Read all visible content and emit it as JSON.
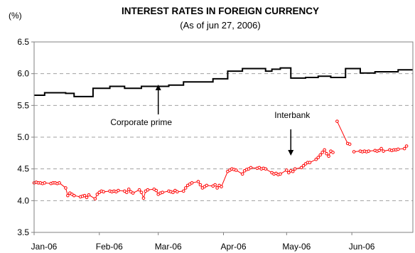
{
  "chart_data": {
    "type": "line",
    "title": "INTEREST RATES IN FOREIGN CURRENCY",
    "subtitle": "(As of jun 27, 2006)",
    "ylabel": "(%)",
    "ylim": [
      3.5,
      6.5
    ],
    "yticks": [
      "3.5",
      "4.0",
      "4.5",
      "5.0",
      "5.5",
      "6.0",
      "6.5"
    ],
    "xlim": [
      "2006-01-01",
      "2006-06-30"
    ],
    "xticks": [
      {
        "date": "2006-01-01",
        "label": "Jan-06"
      },
      {
        "date": "2006-02-01",
        "label": "Feb-06"
      },
      {
        "date": "2006-03-01",
        "label": "Mar-06"
      },
      {
        "date": "2006-04-01",
        "label": "Apr-06"
      },
      {
        "date": "2006-05-01",
        "label": "May-06"
      },
      {
        "date": "2006-06-01",
        "label": "Jun-06"
      }
    ],
    "grid": "horizontal dashed",
    "legend": "none",
    "colors": {
      "corporate_prime": "#000000",
      "interbank": "#ff0000"
    },
    "series": [
      {
        "name": "Corporate prime",
        "step": true,
        "points": [
          [
            "2006-01-01",
            5.66
          ],
          [
            "2006-01-06",
            5.7
          ],
          [
            "2006-01-16",
            5.69
          ],
          [
            "2006-01-20",
            5.64
          ],
          [
            "2006-01-29",
            5.77
          ],
          [
            "2006-02-06",
            5.8
          ],
          [
            "2006-02-13",
            5.77
          ],
          [
            "2006-02-21",
            5.8
          ],
          [
            "2006-03-06",
            5.82
          ],
          [
            "2006-03-13",
            5.87
          ],
          [
            "2006-03-27",
            5.92
          ],
          [
            "2006-04-03",
            6.04
          ],
          [
            "2006-04-10",
            6.08
          ],
          [
            "2006-04-21",
            6.04
          ],
          [
            "2006-04-24",
            6.07
          ],
          [
            "2006-04-28",
            6.09
          ],
          [
            "2006-05-03",
            5.93
          ],
          [
            "2006-05-10",
            5.94
          ],
          [
            "2006-05-16",
            5.96
          ],
          [
            "2006-05-22",
            5.94
          ],
          [
            "2006-05-29",
            6.08
          ],
          [
            "2006-06-05",
            6.01
          ],
          [
            "2006-06-12",
            6.03
          ],
          [
            "2006-06-23",
            6.06
          ],
          [
            "2006-06-30",
            6.06
          ]
        ]
      },
      {
        "name": "Interbank",
        "points": [
          [
            "2006-01-01",
            4.28
          ],
          [
            "2006-01-02",
            4.29
          ],
          [
            "2006-01-03",
            4.28
          ],
          [
            "2006-01-04",
            4.28
          ],
          [
            "2006-01-05",
            4.27
          ],
          [
            "2006-01-06",
            4.28
          ],
          [
            "2006-01-09",
            4.27
          ],
          [
            "2006-01-10",
            4.28
          ],
          [
            "2006-01-11",
            4.28
          ],
          [
            "2006-01-12",
            4.27
          ],
          [
            "2006-01-13",
            4.28
          ],
          [
            "2006-01-16",
            4.2
          ],
          [
            "2006-01-17",
            4.08
          ],
          [
            "2006-01-18",
            4.12
          ],
          [
            "2006-01-19",
            4.1
          ],
          [
            "2006-01-20",
            4.08
          ],
          [
            "2006-01-23",
            4.06
          ],
          [
            "2006-01-24",
            4.07
          ],
          [
            "2006-01-25",
            4.08
          ],
          [
            "2006-01-26",
            4.05
          ],
          [
            "2006-01-27",
            4.09
          ],
          [
            "2006-01-30",
            4.03
          ],
          [
            "2006-01-31",
            4.1
          ],
          [
            "2006-02-01",
            4.13
          ],
          [
            "2006-02-02",
            4.15
          ],
          [
            "2006-02-03",
            4.14
          ],
          [
            "2006-02-06",
            4.15
          ],
          [
            "2006-02-07",
            4.14
          ],
          [
            "2006-02-08",
            4.15
          ],
          [
            "2006-02-09",
            4.14
          ],
          [
            "2006-02-10",
            4.16
          ],
          [
            "2006-02-13",
            4.15
          ],
          [
            "2006-02-14",
            4.13
          ],
          [
            "2006-02-15",
            4.18
          ],
          [
            "2006-02-16",
            4.14
          ],
          [
            "2006-02-17",
            4.12
          ],
          [
            "2006-02-20",
            4.17
          ],
          [
            "2006-02-21",
            4.13
          ],
          [
            "2006-02-22",
            4.04
          ],
          [
            "2006-02-23",
            4.15
          ],
          [
            "2006-02-24",
            4.17
          ],
          [
            "2006-02-27",
            4.18
          ],
          [
            "2006-02-28",
            4.16
          ],
          [
            "2006-03-01",
            4.1
          ],
          [
            "2006-03-02",
            4.12
          ],
          [
            "2006-03-03",
            4.13
          ],
          [
            "2006-03-06",
            4.15
          ],
          [
            "2006-03-07",
            4.14
          ],
          [
            "2006-03-08",
            4.13
          ],
          [
            "2006-03-09",
            4.16
          ],
          [
            "2006-03-10",
            4.14
          ],
          [
            "2006-03-13",
            4.15
          ],
          [
            "2006-03-14",
            4.2
          ],
          [
            "2006-03-15",
            4.24
          ],
          [
            "2006-03-16",
            4.26
          ],
          [
            "2006-03-17",
            4.28
          ],
          [
            "2006-03-20",
            4.3
          ],
          [
            "2006-03-21",
            4.25
          ],
          [
            "2006-03-22",
            4.2
          ],
          [
            "2006-03-23",
            4.22
          ],
          [
            "2006-03-24",
            4.24
          ],
          [
            "2006-03-27",
            4.23
          ],
          [
            "2006-03-28",
            4.25
          ],
          [
            "2006-03-29",
            4.2
          ],
          [
            "2006-03-30",
            4.24
          ],
          [
            "2006-03-31",
            4.22
          ],
          [
            "2006-04-03",
            4.46
          ],
          [
            "2006-04-04",
            4.48
          ],
          [
            "2006-04-05",
            4.5
          ],
          [
            "2006-04-06",
            4.49
          ],
          [
            "2006-04-07",
            4.48
          ],
          [
            "2006-04-10",
            4.42
          ],
          [
            "2006-04-11",
            4.47
          ],
          [
            "2006-04-12",
            4.49
          ],
          [
            "2006-04-13",
            4.5
          ],
          [
            "2006-04-14",
            4.52
          ],
          [
            "2006-04-17",
            4.51
          ],
          [
            "2006-04-18",
            4.52
          ],
          [
            "2006-04-19",
            4.5
          ],
          [
            "2006-04-20",
            4.51
          ],
          [
            "2006-04-21",
            4.5
          ],
          [
            "2006-04-24",
            4.44
          ],
          [
            "2006-04-25",
            4.42
          ],
          [
            "2006-04-26",
            4.43
          ],
          [
            "2006-04-27",
            4.41
          ],
          [
            "2006-04-28",
            4.42
          ],
          [
            "2006-05-01",
            4.48
          ],
          [
            "2006-05-02",
            4.44
          ],
          [
            "2006-05-03",
            4.47
          ],
          [
            "2006-05-04",
            4.46
          ],
          [
            "2006-05-05",
            4.5
          ],
          [
            "2006-05-08",
            4.52
          ],
          [
            "2006-05-09",
            4.55
          ],
          [
            "2006-05-10",
            4.58
          ],
          [
            "2006-05-11",
            4.6
          ],
          [
            "2006-05-12",
            4.6
          ],
          [
            "2006-05-15",
            4.65
          ],
          [
            "2006-05-16",
            4.68
          ],
          [
            "2006-05-17",
            4.72
          ],
          [
            "2006-05-18",
            4.76
          ],
          [
            "2006-05-19",
            4.8
          ],
          [
            "2006-05-20",
            4.74
          ],
          [
            "2006-05-21",
            4.7
          ],
          [
            "2006-05-22",
            4.78
          ],
          [
            "2006-05-23",
            4.76
          ],
          null,
          [
            "2006-05-25",
            5.25
          ],
          [
            "2006-05-30",
            4.9
          ],
          [
            "2006-05-31",
            4.89
          ],
          null,
          [
            "2006-06-02",
            4.77
          ],
          [
            "2006-06-05",
            4.78
          ],
          [
            "2006-06-06",
            4.77
          ],
          [
            "2006-06-07",
            4.78
          ],
          [
            "2006-06-08",
            4.77
          ],
          [
            "2006-06-09",
            4.78
          ],
          [
            "2006-06-12",
            4.79
          ],
          [
            "2006-06-13",
            4.78
          ],
          [
            "2006-06-14",
            4.79
          ],
          [
            "2006-06-15",
            4.82
          ],
          [
            "2006-06-16",
            4.78
          ],
          [
            "2006-06-19",
            4.8
          ],
          [
            "2006-06-20",
            4.79
          ],
          [
            "2006-06-21",
            4.8
          ],
          [
            "2006-06-22",
            4.8
          ],
          [
            "2006-06-23",
            4.81
          ],
          [
            "2006-06-26",
            4.82
          ],
          [
            "2006-06-27",
            4.86
          ]
        ]
      }
    ],
    "annotations": [
      {
        "text": "Corporate prime",
        "series": "Corporate prime",
        "at": "2006-03-01"
      },
      {
        "text": "Interbank",
        "series": "Interbank",
        "at": "2006-05-03"
      }
    ]
  }
}
